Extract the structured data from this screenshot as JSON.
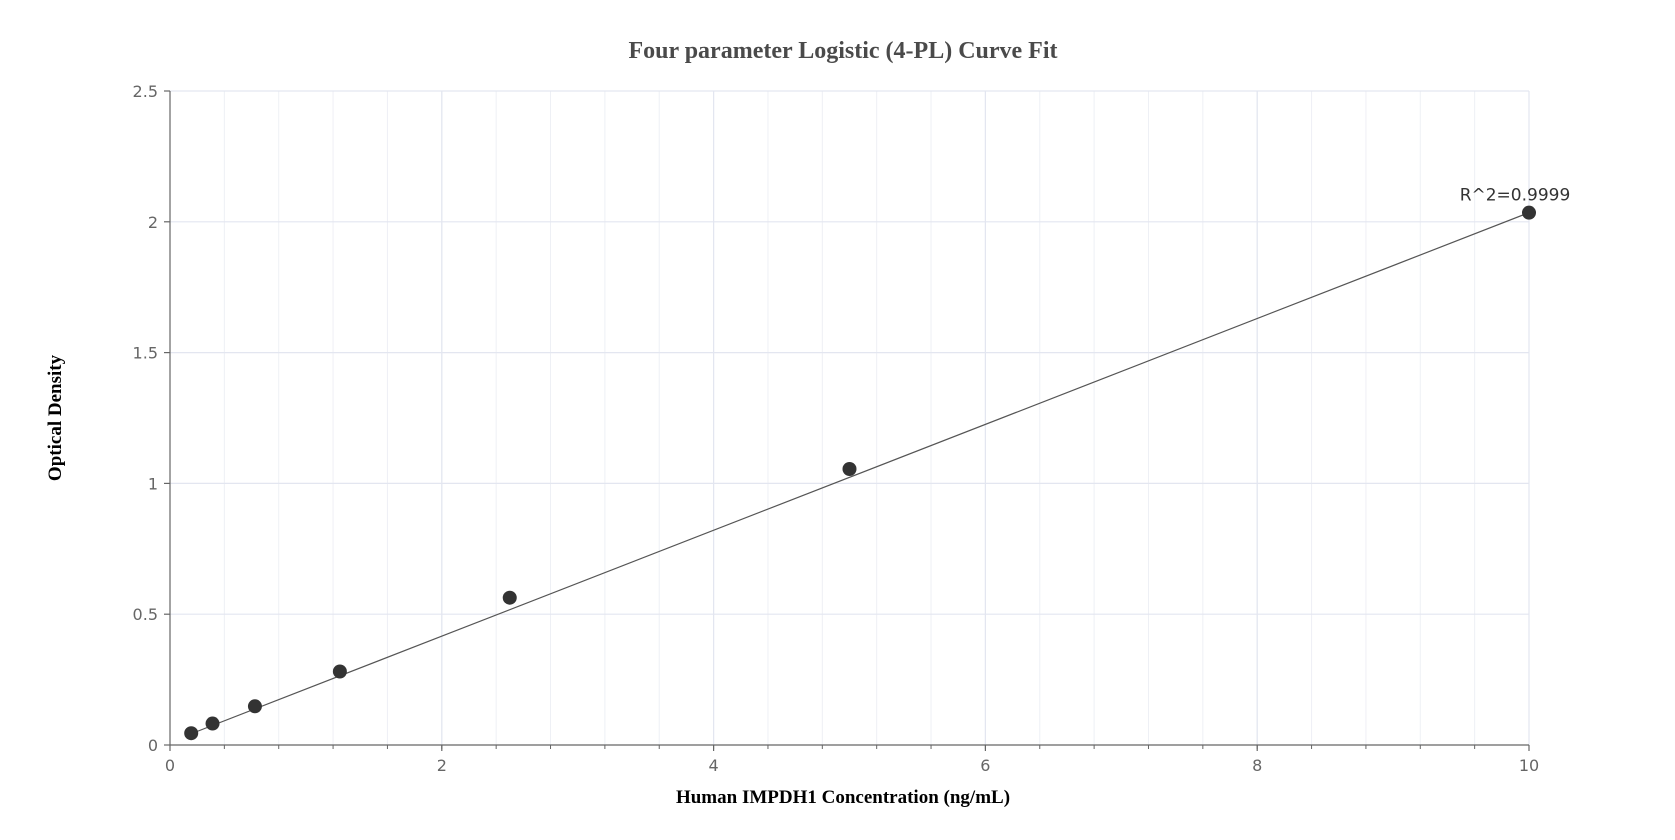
{
  "chart_data": {
    "type": "scatter",
    "title": "Four parameter Logistic (4-PL) Curve Fit",
    "xlabel": "Human IMPDH1 Concentration (ng/mL)",
    "ylabel": "Optical Density",
    "xlim": [
      0,
      10
    ],
    "ylim": [
      0,
      2.5
    ],
    "xticks": [
      0,
      2,
      4,
      6,
      8,
      10
    ],
    "yticks": [
      0,
      0.5,
      1,
      1.5,
      2,
      2.5
    ],
    "xtick_labels": [
      "0",
      "2",
      "4",
      "6",
      "8",
      "10"
    ],
    "ytick_labels": [
      "0",
      "0.5",
      "1",
      "1.5",
      "2",
      "2.5"
    ],
    "grid": true,
    "series": [
      {
        "x": [
          0.156,
          0.313,
          0.625,
          1.25,
          2.5,
          5,
          10
        ],
        "y": [
          0.045,
          0.082,
          0.148,
          0.281,
          0.563,
          1.055,
          2.035
        ]
      }
    ],
    "fit_line": {
      "x": [
        0.156,
        10
      ],
      "y": [
        0.043,
        2.035
      ]
    },
    "annotation": "R^2=0.9999",
    "colors": {
      "point": "#333333",
      "line": "#555555",
      "grid": "#e3e6f0",
      "axis": "#666666"
    }
  }
}
